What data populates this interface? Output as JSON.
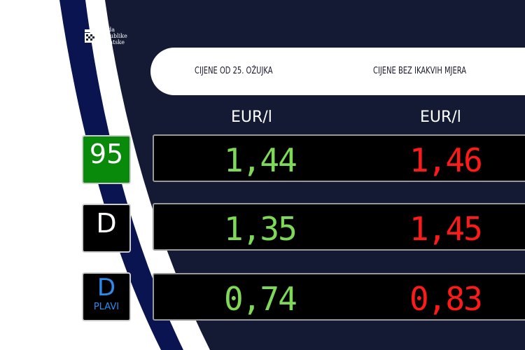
{
  "logo": {
    "lines": [
      "Vlada",
      "Republike",
      "Hrvatske"
    ]
  },
  "header": {
    "col1": "CIJENE OD 25. OŽUJKA",
    "col2": "CIJENE BEZ IKAKVIH MJERA"
  },
  "units": {
    "col1": "EUR/l",
    "col2": "EUR/l"
  },
  "colors": {
    "green": "#7ed957",
    "red": "#ff1a1a",
    "navy": "#0a1450",
    "dark": "#141a33",
    "badge95": "#0a8a0a",
    "plavi": "#2a8cf0"
  },
  "rows": [
    {
      "fuel": "95",
      "sub": "",
      "current": "1,44",
      "without": "1,46"
    },
    {
      "fuel": "D",
      "sub": "",
      "current": "1,35",
      "without": "1,45"
    },
    {
      "fuel": "D",
      "sub": "PLAVI",
      "current": "0,74",
      "without": "0,83"
    }
  ]
}
